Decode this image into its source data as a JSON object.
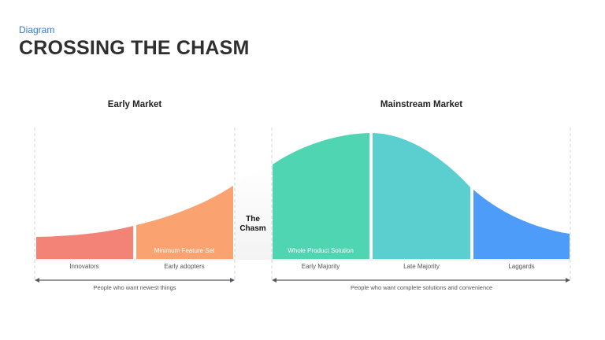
{
  "header": {
    "subtitle": "Diagram",
    "title": "CROSSING THE CHASM"
  },
  "diagram": {
    "early_market": "Early Market",
    "mainstream_market": "Mainstream Market",
    "chasm_line1": "The",
    "chasm_line2": "Chasm",
    "segments": [
      {
        "label": "Innovators",
        "inner_label": "",
        "color": "#f28376"
      },
      {
        "label": "Early adopters",
        "inner_label": "Minimum Feature Set",
        "color": "#fba370"
      },
      {
        "label": "Early Majority",
        "inner_label": "Whole Product Solution",
        "color": "#4fd5b1"
      },
      {
        "label": "Late Majority",
        "inner_label": "",
        "color": "#5bcfcf"
      },
      {
        "label": "Laggards",
        "inner_label": "",
        "color": "#4d9cfa"
      }
    ],
    "early_people": "People who want newest things",
    "mainstream_people": "People who want complete solutions and convenience"
  }
}
